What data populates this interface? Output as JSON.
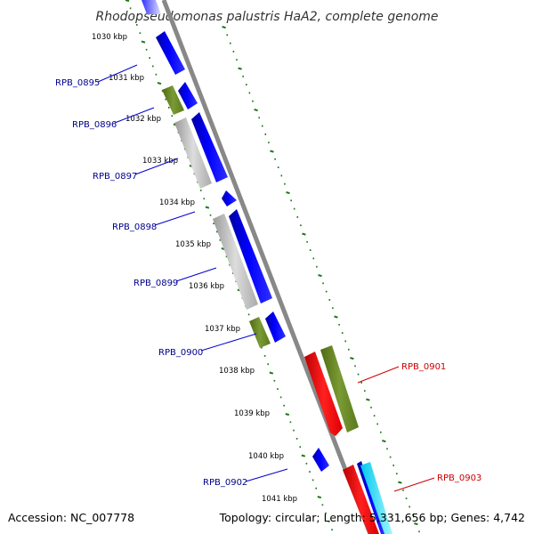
{
  "title": "Rhodopseudomonas palustris HaA2, complete genome",
  "footer": {
    "accession": "Accession: NC_007778",
    "summary": "Topology: circular; Length: 5,331,656 bp; Genes: 4,742"
  },
  "colors": {
    "backbone": "#888888",
    "tick": "#1a7a1a",
    "cds_forward": "#0000ff",
    "cds_gray": "#bbbbbb",
    "cds_olive": "#6b8e23",
    "cds_red": "#ff0000",
    "cds_cyan": "#00e5ff",
    "label_blue": "#00008b",
    "label_red": "#cc0000"
  },
  "kbp_labels": [
    "1030 kbp",
    "1031 kbp",
    "1032 kbp",
    "1033 kbp",
    "1034 kbp",
    "1035 kbp",
    "1036 kbp",
    "1037 kbp",
    "1038 kbp",
    "1039 kbp",
    "1040 kbp",
    "1041 kbp"
  ],
  "left_gene_labels": [
    "RPB_0895",
    "RPB_0896",
    "RPB_0897",
    "RPB_0898",
    "RPB_0899",
    "RPB_0900",
    "RPB_0902"
  ],
  "right_gene_labels": [
    "RPB_0901",
    "RPB_0903"
  ]
}
